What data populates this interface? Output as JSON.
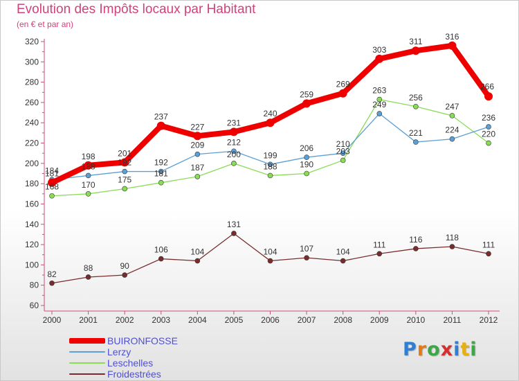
{
  "header": {
    "title": "Evolution des Impôts locaux par Habitant",
    "subtitle": "(en € et par an)"
  },
  "logo": {
    "letters": [
      "P",
      "r",
      "o",
      "x",
      "i",
      "t",
      "i"
    ],
    "colors": [
      "#2e7fd6",
      "#e67a12",
      "#3aa844",
      "#d32f2f",
      "#2e7fd6",
      "#e6b012",
      "#3aa844"
    ]
  },
  "chart_data": {
    "type": "line",
    "title": "Evolution des Impôts locaux par Habitant",
    "subtitle": "(en € et par an)",
    "xlabel": "",
    "ylabel": "",
    "x": [
      "2000",
      "2001",
      "2002",
      "2003",
      "2004",
      "2005",
      "2006",
      "2007",
      "2008",
      "2009",
      "2010",
      "2011",
      "2012"
    ],
    "ylim": [
      60,
      320
    ],
    "yticks": [
      60,
      80,
      100,
      120,
      140,
      160,
      180,
      200,
      220,
      240,
      260,
      280,
      300,
      320
    ],
    "grid": false,
    "legend_position": "bottom-left",
    "series": [
      {
        "name": "BUIRONFOSSE",
        "color": "#ee0000",
        "values": [
          181,
          198,
          201,
          237,
          227,
          231,
          240,
          259,
          269,
          303,
          311,
          316,
          266
        ],
        "labels": [
          "181",
          "198",
          "201",
          "237",
          "227",
          "231",
          "240",
          "259",
          "269",
          "303",
          "311",
          "316",
          "266"
        ]
      },
      {
        "name": "Lerzy",
        "color": "#5b9fd6",
        "values": [
          184,
          188,
          192,
          192,
          209,
          212,
          199,
          206,
          210,
          249,
          221,
          224,
          236
        ],
        "labels": [
          "184",
          "188",
          "192",
          "192",
          "209",
          "212",
          "199",
          "206",
          "210",
          "249",
          "221",
          "224",
          "236"
        ]
      },
      {
        "name": "Leschelles",
        "color": "#88dd55",
        "values": [
          168,
          170,
          175,
          181,
          187,
          200,
          188,
          190,
          203,
          263,
          256,
          247,
          220
        ],
        "labels": [
          "168",
          "170",
          "175",
          "181",
          "187",
          "200",
          "188",
          "190",
          "203",
          "263",
          "256",
          "247",
          "220"
        ]
      },
      {
        "name": "Froidestrées",
        "color": "#7a2c2c",
        "values": [
          82,
          88,
          90,
          106,
          104,
          131,
          104,
          107,
          104,
          111,
          116,
          118,
          111
        ],
        "labels": [
          "82",
          "88",
          "90",
          "106",
          "104",
          "131",
          "104",
          "107",
          "104",
          "111",
          "116",
          "118",
          "111"
        ]
      }
    ]
  }
}
